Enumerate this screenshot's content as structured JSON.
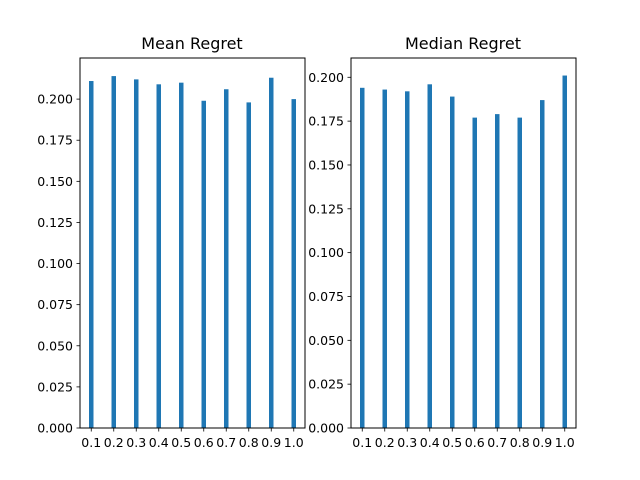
{
  "chart_data": [
    {
      "type": "bar",
      "title": "Mean Regret",
      "xlabel": "",
      "ylabel": "",
      "categories": [
        "0.1",
        "0.2",
        "0.3",
        "0.4",
        "0.5",
        "0.6",
        "0.7",
        "0.8",
        "0.9",
        "1.0"
      ],
      "x": [
        0.1,
        0.2,
        0.3,
        0.4,
        0.5,
        0.6,
        0.7,
        0.8,
        0.9,
        1.0
      ],
      "values": [
        0.211,
        0.214,
        0.212,
        0.209,
        0.21,
        0.199,
        0.206,
        0.198,
        0.213,
        0.2
      ],
      "ylim": [
        0,
        0.225
      ],
      "yticks": [
        0.0,
        0.025,
        0.05,
        0.075,
        0.1,
        0.125,
        0.15,
        0.175,
        0.2
      ],
      "ytick_labels": [
        "0.000",
        "0.025",
        "0.050",
        "0.075",
        "0.100",
        "0.125",
        "0.150",
        "0.175",
        "0.200"
      ],
      "xlim": [
        0.05,
        1.05
      ],
      "bar_color": "#1f77b4",
      "grid": false,
      "legend": "none"
    },
    {
      "type": "bar",
      "title": "Median Regret",
      "xlabel": "",
      "ylabel": "",
      "categories": [
        "0.1",
        "0.2",
        "0.3",
        "0.4",
        "0.5",
        "0.6",
        "0.7",
        "0.8",
        "0.9",
        "1.0"
      ],
      "x": [
        0.1,
        0.2,
        0.3,
        0.4,
        0.5,
        0.6,
        0.7,
        0.8,
        0.9,
        1.0
      ],
      "values": [
        0.194,
        0.193,
        0.192,
        0.196,
        0.189,
        0.177,
        0.179,
        0.177,
        0.187,
        0.201
      ],
      "ylim": [
        0,
        0.211
      ],
      "yticks": [
        0.0,
        0.025,
        0.05,
        0.075,
        0.1,
        0.125,
        0.15,
        0.175,
        0.2
      ],
      "ytick_labels": [
        "0.000",
        "0.025",
        "0.050",
        "0.075",
        "0.100",
        "0.125",
        "0.150",
        "0.175",
        "0.200"
      ],
      "xlim": [
        0.05,
        1.05
      ],
      "bar_color": "#1f77b4",
      "grid": false,
      "legend": "none"
    }
  ]
}
